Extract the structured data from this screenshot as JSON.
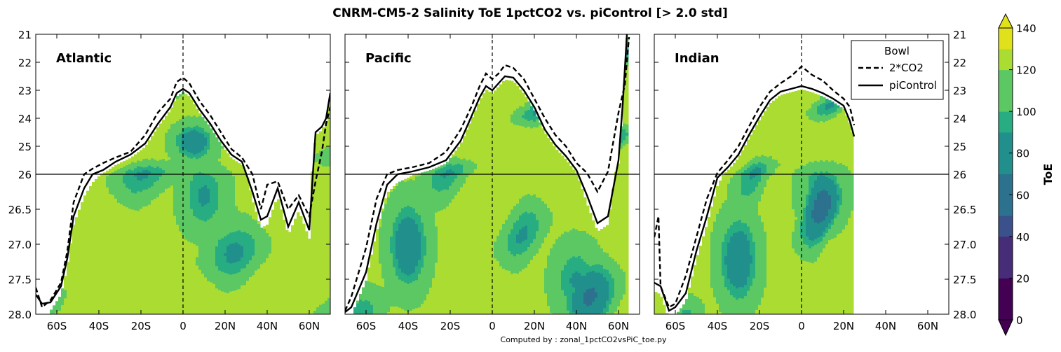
{
  "figure": {
    "title": "CNRM-CM5-2 Salinity ToE 1pctCO2 vs. piControl [> 2.0 std]",
    "footer": "Computed by : zonal_1pctCO2vsPiC_toe.py"
  },
  "chart_data": {
    "type": "heatmap",
    "title": "CNRM-CM5-2 Salinity ToE 1pctCO2 vs. piControl [> 2.0 std]",
    "panels": [
      {
        "name": "Atlantic",
        "lat_extent": [
          -63,
          70
        ]
      },
      {
        "name": "Pacific",
        "lat_extent": [
          -70,
          65
        ]
      },
      {
        "name": "Indian",
        "lat_extent": [
          -70,
          25
        ]
      }
    ],
    "x_axis": {
      "range": [
        -70,
        70
      ],
      "ticks": [
        -60,
        -40,
        -20,
        0,
        20,
        40,
        60
      ],
      "tick_labels": [
        "60S",
        "40S",
        "20S",
        "0",
        "20N",
        "40N",
        "60N"
      ]
    },
    "y_axis": {
      "upper_range": [
        21,
        26
      ],
      "upper_ticks": [
        "21",
        "22",
        "23",
        "24",
        "25",
        "26"
      ],
      "lower_range": [
        26,
        28
      ],
      "lower_ticks": [
        "26.5",
        "27.0",
        "27.5",
        "28.0"
      ],
      "split_at": 26
    },
    "colorbar": {
      "label": "ToE",
      "vmin": 0,
      "vmax": 140,
      "step": 10,
      "tick_labels": [
        "0",
        "20",
        "40",
        "60",
        "80",
        "100",
        "120",
        "140"
      ],
      "extend": "both"
    },
    "legend": {
      "title": "Bowl",
      "placement": "top-right of Indian panel",
      "entries": [
        {
          "label": "2*CO2",
          "style": "dashed"
        },
        {
          "label": "piControl",
          "style": "solid"
        }
      ]
    },
    "series": [
      {
        "name": "2*CO2",
        "panel": "Atlantic",
        "points": [
          [
            -70,
            27.62
          ],
          [
            -67,
            27.9
          ],
          [
            -63,
            27.8
          ],
          [
            -58,
            27.55
          ],
          [
            -55,
            27.1
          ],
          [
            -52,
            26.4
          ],
          [
            -47,
            26.0
          ],
          [
            -43,
            25.8
          ],
          [
            -38,
            25.6
          ],
          [
            -32,
            25.4
          ],
          [
            -25,
            25.2
          ],
          [
            -18,
            24.6
          ],
          [
            -12,
            23.8
          ],
          [
            -6,
            23.3
          ],
          [
            -3,
            22.7
          ],
          [
            0,
            22.55
          ],
          [
            3,
            22.75
          ],
          [
            8,
            23.4
          ],
          [
            13,
            23.9
          ],
          [
            18,
            24.5
          ],
          [
            23,
            25.1
          ],
          [
            28,
            25.4
          ],
          [
            33,
            26.0
          ],
          [
            37,
            26.5
          ],
          [
            40,
            26.15
          ],
          [
            45,
            26.1
          ],
          [
            50,
            26.5
          ],
          [
            55,
            26.3
          ],
          [
            60,
            26.6
          ],
          [
            63,
            26.1
          ],
          [
            66,
            25.2
          ],
          [
            68,
            24.2
          ],
          [
            70,
            23.6
          ]
        ]
      },
      {
        "name": "piControl",
        "panel": "Atlantic",
        "points": [
          [
            -70,
            27.72
          ],
          [
            -67,
            27.85
          ],
          [
            -63,
            27.83
          ],
          [
            -58,
            27.6
          ],
          [
            -55,
            27.2
          ],
          [
            -52,
            26.6
          ],
          [
            -47,
            26.2
          ],
          [
            -43,
            26.0
          ],
          [
            -38,
            25.85
          ],
          [
            -32,
            25.55
          ],
          [
            -25,
            25.3
          ],
          [
            -18,
            24.9
          ],
          [
            -12,
            24.2
          ],
          [
            -6,
            23.6
          ],
          [
            -3,
            23.1
          ],
          [
            0,
            22.95
          ],
          [
            3,
            23.1
          ],
          [
            8,
            23.7
          ],
          [
            13,
            24.2
          ],
          [
            18,
            24.8
          ],
          [
            23,
            25.3
          ],
          [
            28,
            25.55
          ],
          [
            33,
            26.25
          ],
          [
            37,
            26.65
          ],
          [
            40,
            26.6
          ],
          [
            45,
            26.2
          ],
          [
            50,
            26.75
          ],
          [
            55,
            26.4
          ],
          [
            60,
            26.8
          ],
          [
            63,
            24.5
          ],
          [
            66,
            24.3
          ],
          [
            68,
            24.0
          ],
          [
            70,
            23.1
          ]
        ]
      },
      {
        "name": "2*CO2",
        "panel": "Pacific",
        "points": [
          [
            -70,
            27.95
          ],
          [
            -67,
            27.75
          ],
          [
            -60,
            27.05
          ],
          [
            -55,
            26.35
          ],
          [
            -50,
            26.0
          ],
          [
            -45,
            25.85
          ],
          [
            -38,
            25.75
          ],
          [
            -30,
            25.6
          ],
          [
            -22,
            25.2
          ],
          [
            -15,
            24.4
          ],
          [
            -10,
            23.6
          ],
          [
            -6,
            22.85
          ],
          [
            -3,
            22.4
          ],
          [
            0,
            22.6
          ],
          [
            3,
            22.4
          ],
          [
            6,
            22.1
          ],
          [
            10,
            22.2
          ],
          [
            15,
            22.6
          ],
          [
            20,
            23.3
          ],
          [
            25,
            24.0
          ],
          [
            30,
            24.6
          ],
          [
            35,
            25.0
          ],
          [
            40,
            25.6
          ],
          [
            45,
            25.95
          ],
          [
            50,
            26.25
          ],
          [
            55,
            25.9
          ],
          [
            60,
            23.8
          ],
          [
            63,
            22.8
          ],
          [
            65,
            21.1
          ]
        ]
      },
      {
        "name": "piControl",
        "panel": "Pacific",
        "points": [
          [
            -70,
            27.97
          ],
          [
            -67,
            27.9
          ],
          [
            -60,
            27.4
          ],
          [
            -55,
            26.7
          ],
          [
            -50,
            26.15
          ],
          [
            -45,
            26.0
          ],
          [
            -38,
            25.9
          ],
          [
            -30,
            25.75
          ],
          [
            -22,
            25.5
          ],
          [
            -15,
            24.8
          ],
          [
            -10,
            23.95
          ],
          [
            -6,
            23.25
          ],
          [
            -3,
            22.85
          ],
          [
            0,
            23.0
          ],
          [
            3,
            22.75
          ],
          [
            6,
            22.5
          ],
          [
            10,
            22.55
          ],
          [
            15,
            23.0
          ],
          [
            20,
            23.6
          ],
          [
            25,
            24.4
          ],
          [
            30,
            24.95
          ],
          [
            35,
            25.35
          ],
          [
            40,
            25.85
          ],
          [
            45,
            26.3
          ],
          [
            50,
            26.7
          ],
          [
            55,
            26.6
          ],
          [
            60,
            25.5
          ],
          [
            62,
            23.5
          ],
          [
            64,
            21.0
          ]
        ]
      },
      {
        "name": "2*CO2",
        "panel": "Indian",
        "points": [
          [
            -70,
            26.9
          ],
          [
            -68,
            26.6
          ],
          [
            -67,
            27.6
          ],
          [
            -63,
            27.9
          ],
          [
            -60,
            27.85
          ],
          [
            -55,
            27.45
          ],
          [
            -50,
            26.9
          ],
          [
            -45,
            26.35
          ],
          [
            -40,
            25.95
          ],
          [
            -35,
            25.5
          ],
          [
            -30,
            25.0
          ],
          [
            -25,
            24.3
          ],
          [
            -20,
            23.6
          ],
          [
            -15,
            23.05
          ],
          [
            -10,
            22.75
          ],
          [
            -5,
            22.5
          ],
          [
            0,
            22.15
          ],
          [
            5,
            22.45
          ],
          [
            10,
            22.65
          ],
          [
            15,
            23.0
          ],
          [
            20,
            23.3
          ],
          [
            23,
            23.6
          ],
          [
            25,
            24.25
          ]
        ]
      },
      {
        "name": "piControl",
        "panel": "Indian",
        "points": [
          [
            -70,
            27.55
          ],
          [
            -67,
            27.6
          ],
          [
            -63,
            27.95
          ],
          [
            -60,
            27.9
          ],
          [
            -55,
            27.7
          ],
          [
            -50,
            27.1
          ],
          [
            -45,
            26.6
          ],
          [
            -40,
            26.05
          ],
          [
            -35,
            25.75
          ],
          [
            -30,
            25.3
          ],
          [
            -25,
            24.6
          ],
          [
            -20,
            23.95
          ],
          [
            -15,
            23.35
          ],
          [
            -10,
            23.05
          ],
          [
            -5,
            22.95
          ],
          [
            0,
            22.85
          ],
          [
            5,
            22.95
          ],
          [
            10,
            23.1
          ],
          [
            15,
            23.3
          ],
          [
            20,
            23.55
          ],
          [
            23,
            24.1
          ],
          [
            25,
            24.65
          ]
        ]
      }
    ]
  }
}
